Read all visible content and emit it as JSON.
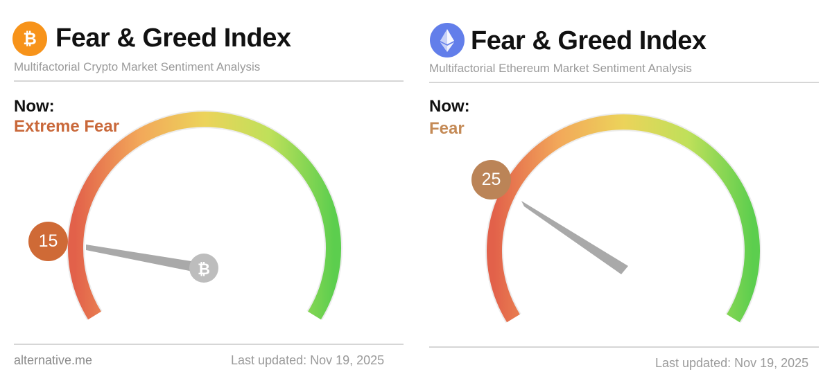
{
  "btc": {
    "title": "Fear & Greed Index",
    "subtitle": "Multifactorial Crypto Market Sentiment Analysis",
    "now_label": "Now:",
    "state": "Extreme Fear",
    "state_color": "#c9683a",
    "value": 15,
    "value_text": "15",
    "badge_color": "#cf6a36",
    "logo_icon": "bitcoin-icon",
    "logo_color": "#f7931a",
    "logo_glyph": "₿",
    "needle_cap_icon": "bitcoin-icon",
    "source": "alternative.me",
    "updated": "Last updated: Nov 19, 2025"
  },
  "eth": {
    "title": "Fear & Greed Index",
    "subtitle": "Multifactorial Ethereum Market Sentiment Analysis",
    "now_label": "Now:",
    "state": "Fear",
    "state_color": "#c48a56",
    "value": 25,
    "value_text": "25",
    "badge_color": "#bb8457",
    "logo_icon": "ethereum-icon",
    "logo_color": "#627eea",
    "updated": "Last updated: Nov 19, 2025"
  },
  "gauge_colors": [
    "#e2614a",
    "#f2a85a",
    "#ecd35a",
    "#bfe05a",
    "#5cce4e"
  ]
}
